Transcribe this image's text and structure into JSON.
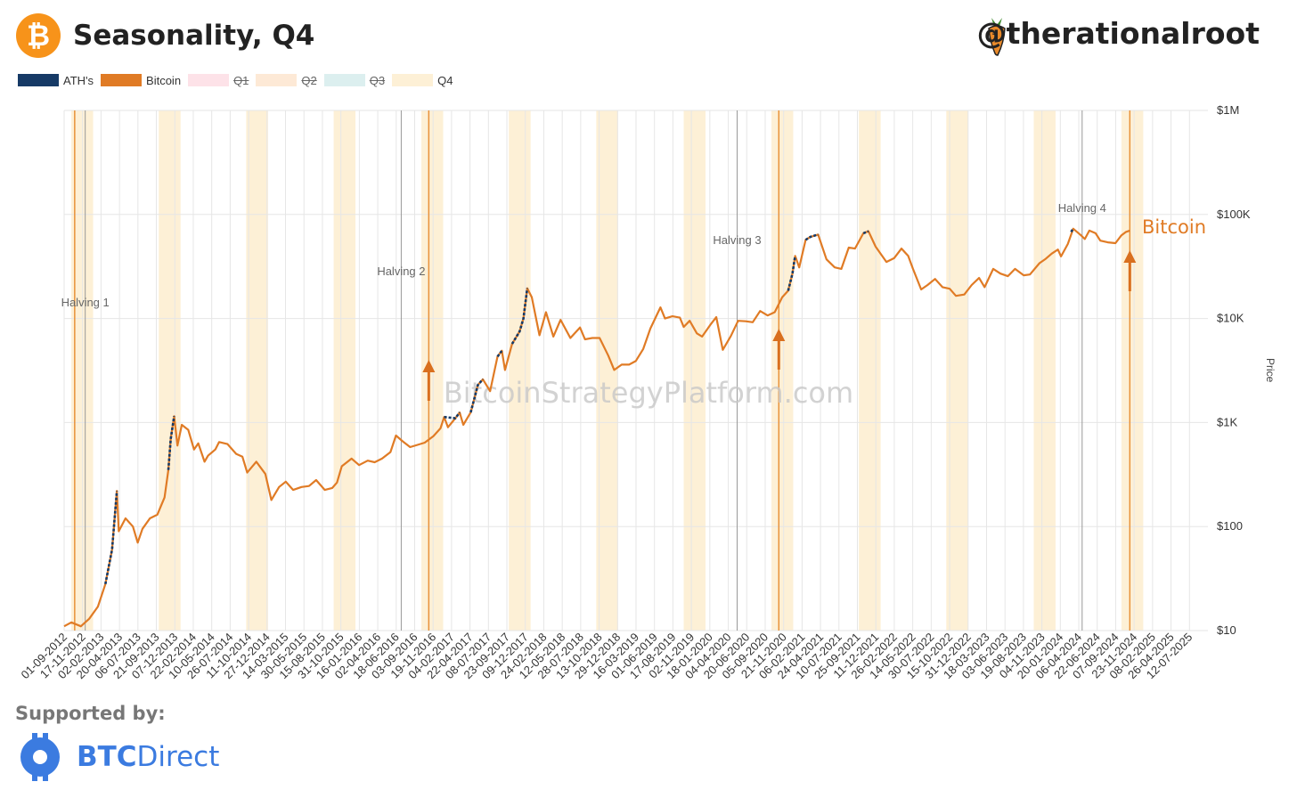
{
  "header": {
    "title": "Seasonality, Q4",
    "logo_glyph": "₿",
    "handle": "@therationalroot"
  },
  "legend": [
    {
      "label": "ATH's",
      "color": "#163a66",
      "active": true
    },
    {
      "label": "Bitcoin",
      "color": "#e07b25",
      "active": true
    },
    {
      "label": "Q1",
      "color": "#fde2e8",
      "active": false
    },
    {
      "label": "Q2",
      "color": "#fde9d6",
      "active": false
    },
    {
      "label": "Q3",
      "color": "#dcefef",
      "active": false
    },
    {
      "label": "Q4",
      "color": "#fdf0d6",
      "active": true
    }
  ],
  "footer": {
    "supported_label": "Supported by:",
    "sponsor_bold": "BTC",
    "sponsor_light": "Direct"
  },
  "chart_data": {
    "type": "line",
    "title": "Seasonality, Q4",
    "watermark": "BitcoinStrategyPlatform.com",
    "ylabel": "Price",
    "yscale": "log",
    "ylim": [
      10,
      1000000
    ],
    "y_ticks": [
      {
        "value": 10,
        "label": "$10"
      },
      {
        "value": 100,
        "label": "$100"
      },
      {
        "value": 1000,
        "label": "$1K"
      },
      {
        "value": 10000,
        "label": "$10K"
      },
      {
        "value": 100000,
        "label": "$100K"
      },
      {
        "value": 1000000,
        "label": "$1M"
      }
    ],
    "xlim": [
      "2012-09-01",
      "2025-09-27"
    ],
    "x_tick_labels": [
      "01-09-2012",
      "17-11-2012",
      "02-02-2013",
      "20-04-2013",
      "06-07-2013",
      "21-09-2013",
      "07-12-2013",
      "22-02-2014",
      "10-05-2014",
      "26-07-2014",
      "11-10-2014",
      "27-12-2014",
      "14-03-2015",
      "30-05-2015",
      "15-08-2015",
      "31-10-2015",
      "16-01-2016",
      "02-04-2016",
      "18-06-2016",
      "03-09-2016",
      "19-11-2016",
      "04-02-2017",
      "22-04-2017",
      "08-07-2017",
      "23-09-2017",
      "09-12-2017",
      "24-02-2018",
      "12-05-2018",
      "28-07-2018",
      "13-10-2018",
      "29-12-2018",
      "16-03-2019",
      "01-06-2019",
      "17-08-2019",
      "02-11-2019",
      "18-01-2020",
      "04-04-2020",
      "20-06-2020",
      "05-09-2020",
      "21-11-2020",
      "06-02-2021",
      "24-04-2021",
      "10-07-2021",
      "25-09-2021",
      "11-12-2021",
      "26-02-2022",
      "14-05-2022",
      "30-07-2022",
      "15-10-2022",
      "31-12-2022",
      "18-03-2023",
      "03-06-2023",
      "19-08-2023",
      "04-11-2023",
      "20-01-2024",
      "06-04-2024",
      "22-06-2024",
      "07-09-2024",
      "23-11-2024",
      "08-02-2025",
      "26-04-2025",
      "12-07-2025"
    ],
    "q4_bands": [
      [
        "2012-10-01",
        "2012-12-31"
      ],
      [
        "2013-10-01",
        "2013-12-31"
      ],
      [
        "2014-10-01",
        "2014-12-31"
      ],
      [
        "2015-10-01",
        "2015-12-31"
      ],
      [
        "2016-10-01",
        "2016-12-31"
      ],
      [
        "2017-10-01",
        "2017-12-31"
      ],
      [
        "2018-10-01",
        "2018-12-31"
      ],
      [
        "2019-10-01",
        "2019-12-31"
      ],
      [
        "2020-10-01",
        "2020-12-31"
      ],
      [
        "2021-10-01",
        "2021-12-31"
      ],
      [
        "2022-10-01",
        "2022-12-31"
      ],
      [
        "2023-10-01",
        "2023-12-31"
      ],
      [
        "2024-10-01",
        "2024-12-31"
      ]
    ],
    "halvings": [
      {
        "label": "Halving 1",
        "date": "2012-11-28"
      },
      {
        "label": "Halving 2",
        "date": "2016-07-09"
      },
      {
        "label": "Halving 3",
        "date": "2020-05-11"
      },
      {
        "label": "Halving 4",
        "date": "2024-04-20"
      }
    ],
    "q4_start_markers": [
      "2012-10-15",
      "2016-11-01",
      "2020-11-01",
      "2024-11-05"
    ],
    "arrows": [
      "2016-11-01",
      "2020-11-01",
      "2024-11-05"
    ],
    "series_label": "Bitcoin",
    "series": [
      {
        "name": "Bitcoin",
        "color": "#e07b25",
        "points": [
          [
            "2012-09-01",
            11
          ],
          [
            "2012-10-01",
            12
          ],
          [
            "2012-11-10",
            11
          ],
          [
            "2012-12-15",
            13
          ],
          [
            "2013-01-20",
            17
          ],
          [
            "2013-02-20",
            28
          ],
          [
            "2013-03-20",
            60
          ],
          [
            "2013-04-09",
            220
          ],
          [
            "2013-04-17",
            90
          ],
          [
            "2013-05-15",
            120
          ],
          [
            "2013-06-15",
            100
          ],
          [
            "2013-07-05",
            70
          ],
          [
            "2013-07-25",
            95
          ],
          [
            "2013-08-25",
            120
          ],
          [
            "2013-09-25",
            130
          ],
          [
            "2013-10-25",
            190
          ],
          [
            "2013-11-10",
            350
          ],
          [
            "2013-11-20",
            700
          ],
          [
            "2013-12-04",
            1150
          ],
          [
            "2013-12-18",
            600
          ],
          [
            "2014-01-05",
            950
          ],
          [
            "2014-02-01",
            850
          ],
          [
            "2014-02-25",
            550
          ],
          [
            "2014-03-15",
            630
          ],
          [
            "2014-04-10",
            420
          ],
          [
            "2014-04-25",
            480
          ],
          [
            "2014-05-25",
            550
          ],
          [
            "2014-06-10",
            650
          ],
          [
            "2014-07-15",
            620
          ],
          [
            "2014-08-20",
            500
          ],
          [
            "2014-09-15",
            470
          ],
          [
            "2014-10-05",
            330
          ],
          [
            "2014-11-12",
            420
          ],
          [
            "2014-12-20",
            320
          ],
          [
            "2015-01-14",
            180
          ],
          [
            "2015-02-15",
            240
          ],
          [
            "2015-03-15",
            270
          ],
          [
            "2015-04-15",
            225
          ],
          [
            "2015-05-20",
            240
          ],
          [
            "2015-06-20",
            245
          ],
          [
            "2015-07-20",
            280
          ],
          [
            "2015-08-25",
            225
          ],
          [
            "2015-09-25",
            235
          ],
          [
            "2015-10-15",
            265
          ],
          [
            "2015-11-04",
            380
          ],
          [
            "2015-12-15",
            450
          ],
          [
            "2016-01-15",
            390
          ],
          [
            "2016-02-20",
            430
          ],
          [
            "2016-03-20",
            415
          ],
          [
            "2016-04-20",
            450
          ],
          [
            "2016-05-25",
            520
          ],
          [
            "2016-06-17",
            750
          ],
          [
            "2016-07-15",
            660
          ],
          [
            "2016-08-15",
            580
          ],
          [
            "2016-09-15",
            610
          ],
          [
            "2016-10-15",
            640
          ],
          [
            "2016-11-20",
            740
          ],
          [
            "2016-12-20",
            880
          ],
          [
            "2017-01-04",
            1130
          ],
          [
            "2017-01-20",
            900
          ],
          [
            "2017-02-20",
            1100
          ],
          [
            "2017-03-10",
            1250
          ],
          [
            "2017-03-25",
            950
          ],
          [
            "2017-04-25",
            1250
          ],
          [
            "2017-05-25",
            2300
          ],
          [
            "2017-06-15",
            2600
          ],
          [
            "2017-07-15",
            2000
          ],
          [
            "2017-08-15",
            4300
          ],
          [
            "2017-09-02",
            4900
          ],
          [
            "2017-09-15",
            3200
          ],
          [
            "2017-10-15",
            5700
          ],
          [
            "2017-11-15",
            7500
          ],
          [
            "2017-12-01",
            10000
          ],
          [
            "2017-12-17",
            19500
          ],
          [
            "2018-01-05",
            16000
          ],
          [
            "2018-02-06",
            6900
          ],
          [
            "2018-03-05",
            11500
          ],
          [
            "2018-04-05",
            6700
          ],
          [
            "2018-05-05",
            9700
          ],
          [
            "2018-06-15",
            6500
          ],
          [
            "2018-07-25",
            8200
          ],
          [
            "2018-08-15",
            6300
          ],
          [
            "2018-09-15",
            6500
          ],
          [
            "2018-10-15",
            6500
          ],
          [
            "2018-11-20",
            4400
          ],
          [
            "2018-12-15",
            3200
          ],
          [
            "2019-01-15",
            3600
          ],
          [
            "2019-02-15",
            3600
          ],
          [
            "2019-03-15",
            3900
          ],
          [
            "2019-04-15",
            5100
          ],
          [
            "2019-05-15",
            8000
          ],
          [
            "2019-06-26",
            12800
          ],
          [
            "2019-07-15",
            10000
          ],
          [
            "2019-08-15",
            10500
          ],
          [
            "2019-09-15",
            10200
          ],
          [
            "2019-10-01",
            8300
          ],
          [
            "2019-10-26",
            9500
          ],
          [
            "2019-11-25",
            7200
          ],
          [
            "2019-12-17",
            6700
          ],
          [
            "2020-01-20",
            8700
          ],
          [
            "2020-02-14",
            10300
          ],
          [
            "2020-03-12",
            5000
          ],
          [
            "2020-04-15",
            6800
          ],
          [
            "2020-05-15",
            9500
          ],
          [
            "2020-06-15",
            9400
          ],
          [
            "2020-07-15",
            9200
          ],
          [
            "2020-08-15",
            11800
          ],
          [
            "2020-09-15",
            10700
          ],
          [
            "2020-10-15",
            11500
          ],
          [
            "2020-11-15",
            16000
          ],
          [
            "2020-12-10",
            18500
          ],
          [
            "2020-12-28",
            27000
          ],
          [
            "2021-01-08",
            40000
          ],
          [
            "2021-01-25",
            31000
          ],
          [
            "2021-02-21",
            57000
          ],
          [
            "2021-03-13",
            61000
          ],
          [
            "2021-04-14",
            64000
          ],
          [
            "2021-05-19",
            37000
          ],
          [
            "2021-06-22",
            31000
          ],
          [
            "2021-07-20",
            30000
          ],
          [
            "2021-08-20",
            48000
          ],
          [
            "2021-09-15",
            47000
          ],
          [
            "2021-10-20",
            66000
          ],
          [
            "2021-11-10",
            69000
          ],
          [
            "2021-12-10",
            49000
          ],
          [
            "2022-01-24",
            35000
          ],
          [
            "2022-02-25",
            38000
          ],
          [
            "2022-03-28",
            47000
          ],
          [
            "2022-04-25",
            40000
          ],
          [
            "2022-05-15",
            30000
          ],
          [
            "2022-06-18",
            19000
          ],
          [
            "2022-07-15",
            21000
          ],
          [
            "2022-08-15",
            24000
          ],
          [
            "2022-09-15",
            20000
          ],
          [
            "2022-10-15",
            19300
          ],
          [
            "2022-11-10",
            16500
          ],
          [
            "2022-12-15",
            17000
          ],
          [
            "2023-01-15",
            21000
          ],
          [
            "2023-02-15",
            24500
          ],
          [
            "2023-03-10",
            20000
          ],
          [
            "2023-04-15",
            30000
          ],
          [
            "2023-05-15",
            27000
          ],
          [
            "2023-06-15",
            25500
          ],
          [
            "2023-07-15",
            30000
          ],
          [
            "2023-08-20",
            26000
          ],
          [
            "2023-09-15",
            26500
          ],
          [
            "2023-10-25",
            34000
          ],
          [
            "2023-11-20",
            37500
          ],
          [
            "2023-12-15",
            42000
          ],
          [
            "2024-01-10",
            46000
          ],
          [
            "2024-01-23",
            39500
          ],
          [
            "2024-02-20",
            52000
          ],
          [
            "2024-03-14",
            73000
          ],
          [
            "2024-04-15",
            63000
          ],
          [
            "2024-05-01",
            58000
          ],
          [
            "2024-05-20",
            70000
          ],
          [
            "2024-06-15",
            66000
          ],
          [
            "2024-07-05",
            56000
          ],
          [
            "2024-08-05",
            54000
          ],
          [
            "2024-09-06",
            53000
          ],
          [
            "2024-10-01",
            63000
          ],
          [
            "2024-10-20",
            68000
          ],
          [
            "2024-11-05",
            70000
          ]
        ]
      },
      {
        "name": "ATH's",
        "color": "#163a66",
        "segments": [
          [
            [
              "2013-02-20",
              28
            ],
            [
              "2013-03-20",
              60
            ],
            [
              "2013-04-09",
              220
            ]
          ],
          [
            [
              "2013-11-10",
              350
            ],
            [
              "2013-11-20",
              700
            ],
            [
              "2013-12-04",
              1150
            ]
          ],
          [
            [
              "2017-01-04",
              1130
            ],
            [
              "2017-02-20",
              1100
            ],
            [
              "2017-03-10",
              1250
            ]
          ],
          [
            [
              "2017-04-25",
              1250
            ],
            [
              "2017-05-25",
              2300
            ],
            [
              "2017-06-15",
              2600
            ]
          ],
          [
            [
              "2017-08-15",
              4300
            ],
            [
              "2017-09-02",
              4900
            ]
          ],
          [
            [
              "2017-10-15",
              5700
            ],
            [
              "2017-11-15",
              7500
            ],
            [
              "2017-12-01",
              10000
            ],
            [
              "2017-12-17",
              19500
            ]
          ],
          [
            [
              "2020-12-10",
              18500
            ],
            [
              "2020-12-28",
              27000
            ],
            [
              "2021-01-08",
              40000
            ]
          ],
          [
            [
              "2021-02-21",
              57000
            ],
            [
              "2021-03-13",
              61000
            ],
            [
              "2021-04-14",
              64000
            ]
          ],
          [
            [
              "2021-10-20",
              66000
            ],
            [
              "2021-11-10",
              69000
            ]
          ],
          [
            [
              "2024-03-05",
              68000
            ],
            [
              "2024-03-14",
              73000
            ]
          ]
        ]
      }
    ]
  }
}
